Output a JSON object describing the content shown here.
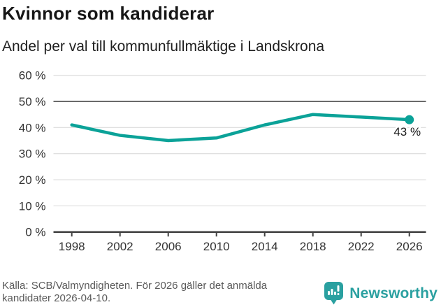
{
  "chart_data": {
    "type": "line",
    "title": "Kvinnor som kandiderar",
    "subtitle": "Andel per val till kommunfullmäktige i Landskrona",
    "categories": [
      "1998",
      "2002",
      "2006",
      "2010",
      "2014",
      "2018",
      "2022",
      "2026"
    ],
    "values": [
      41,
      37,
      35,
      36,
      41,
      45,
      44,
      43
    ],
    "unit": "%",
    "ylim": [
      0,
      60
    ],
    "yticks": [
      0,
      10,
      20,
      30,
      40,
      50,
      60
    ],
    "ytick_suffix": " %",
    "reference_value": 50,
    "end_label": "43 %",
    "line_color": "#0ba298",
    "marker_color": "#0ba298",
    "grid_color": "#e0e0e0",
    "reference_line_color": "#6a6a6a",
    "axis_color": "#404040",
    "grid": true,
    "legend_position": "none"
  },
  "footer": {
    "source_line1": "Källa: SCB/Valmyndigheten. För 2026 gäller det anmälda",
    "source_line2": "kandidater 2026-04-10.",
    "brand": "Newsworthy",
    "brand_color": "#2aa0a0",
    "logo_icon": "speech-bubble-bar-chart-exclamation"
  }
}
